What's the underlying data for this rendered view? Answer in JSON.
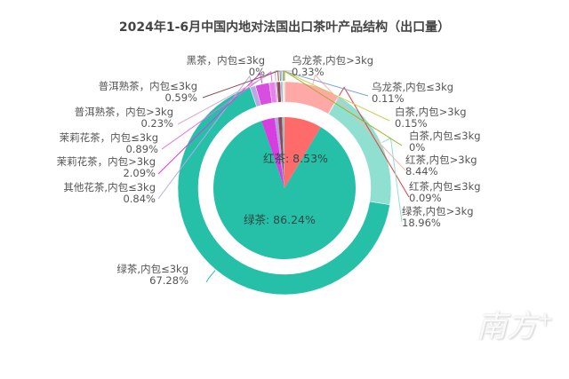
{
  "chart_data": {
    "type": "pie",
    "title": "2024年1-6月中国内地对法国出口茶叶产品结构（出口量）",
    "inner_pie": {
      "categories": [
        "红茶",
        "绿茶",
        "茉莉花茶",
        "其他花茶",
        "普洱熟茶",
        "黑茶",
        "乌龙茶",
        "白茶"
      ],
      "values": [
        8.53,
        86.24,
        2.98,
        0.84,
        0.82,
        0.0,
        0.44,
        0.15
      ],
      "colors": [
        "#ff6b6b",
        "#26c0a8",
        "#d63ee0",
        "#b89be0",
        "#8b4a55",
        "#6b3a3a",
        "#9ab0d0",
        "#c8d07a"
      ],
      "visible_labels": [
        {
          "text": "红茶: 8.53%",
          "category": "红茶"
        },
        {
          "text": "绿茶: 86.24%",
          "category": "绿茶"
        }
      ]
    },
    "outer_ring": {
      "categories": [
        "红茶,内包>3kg",
        "红茶,内包≤3kg",
        "绿茶,内包>3kg",
        "绿茶,内包≤3kg",
        "其他花茶,内包≤3kg",
        "茉莉花茶，内包>3kg",
        "茉莉花茶，内包≤3kg",
        "普洱熟茶，内包>3kg",
        "普洱熟茶，内包≤3kg",
        "黑茶，内包≤3kg",
        "乌龙茶,内包>3kg",
        "乌龙茶,内包≤3kg",
        "白茶,内包>3kg",
        "白茶,内包≤3kg"
      ],
      "values": [
        8.44,
        0.09,
        18.96,
        67.28,
        0.84,
        2.09,
        0.89,
        0.23,
        0.59,
        0.0,
        0.33,
        0.11,
        0.15,
        0.0
      ],
      "labels": [
        "8.44%",
        "0.09%",
        "18.96%",
        "67.28%",
        "0.84%",
        "2.09%",
        "0.89%",
        "0.23%",
        "0.59%",
        "0%",
        "0.33%",
        "0.11%",
        "0.15%",
        "0%"
      ],
      "colors": [
        "#ffa8a8",
        "#ff5a5a",
        "#8fe0d0",
        "#26c0a8",
        "#b8a8e8",
        "#d84ee0",
        "#e880f0",
        "#c0a0d8",
        "#8b4a55",
        "#5a3030",
        "#a8b8d8",
        "#7aa0d8",
        "#c8d07a",
        "#b0c040"
      ],
      "line_colors": [
        "#ffb0b0",
        "#e04040",
        "#90e0d0",
        "#26c0a8",
        "#b8a8e8",
        "#d040d8",
        "#e070e8",
        "#d8a8c8",
        "#8b4a55",
        "#888888",
        "#b0c0d8",
        "#7aa0d8",
        "#c8d050",
        "#a0b020"
      ]
    },
    "legend": "none"
  },
  "watermark": {
    "text": "南方",
    "plus": "+"
  }
}
